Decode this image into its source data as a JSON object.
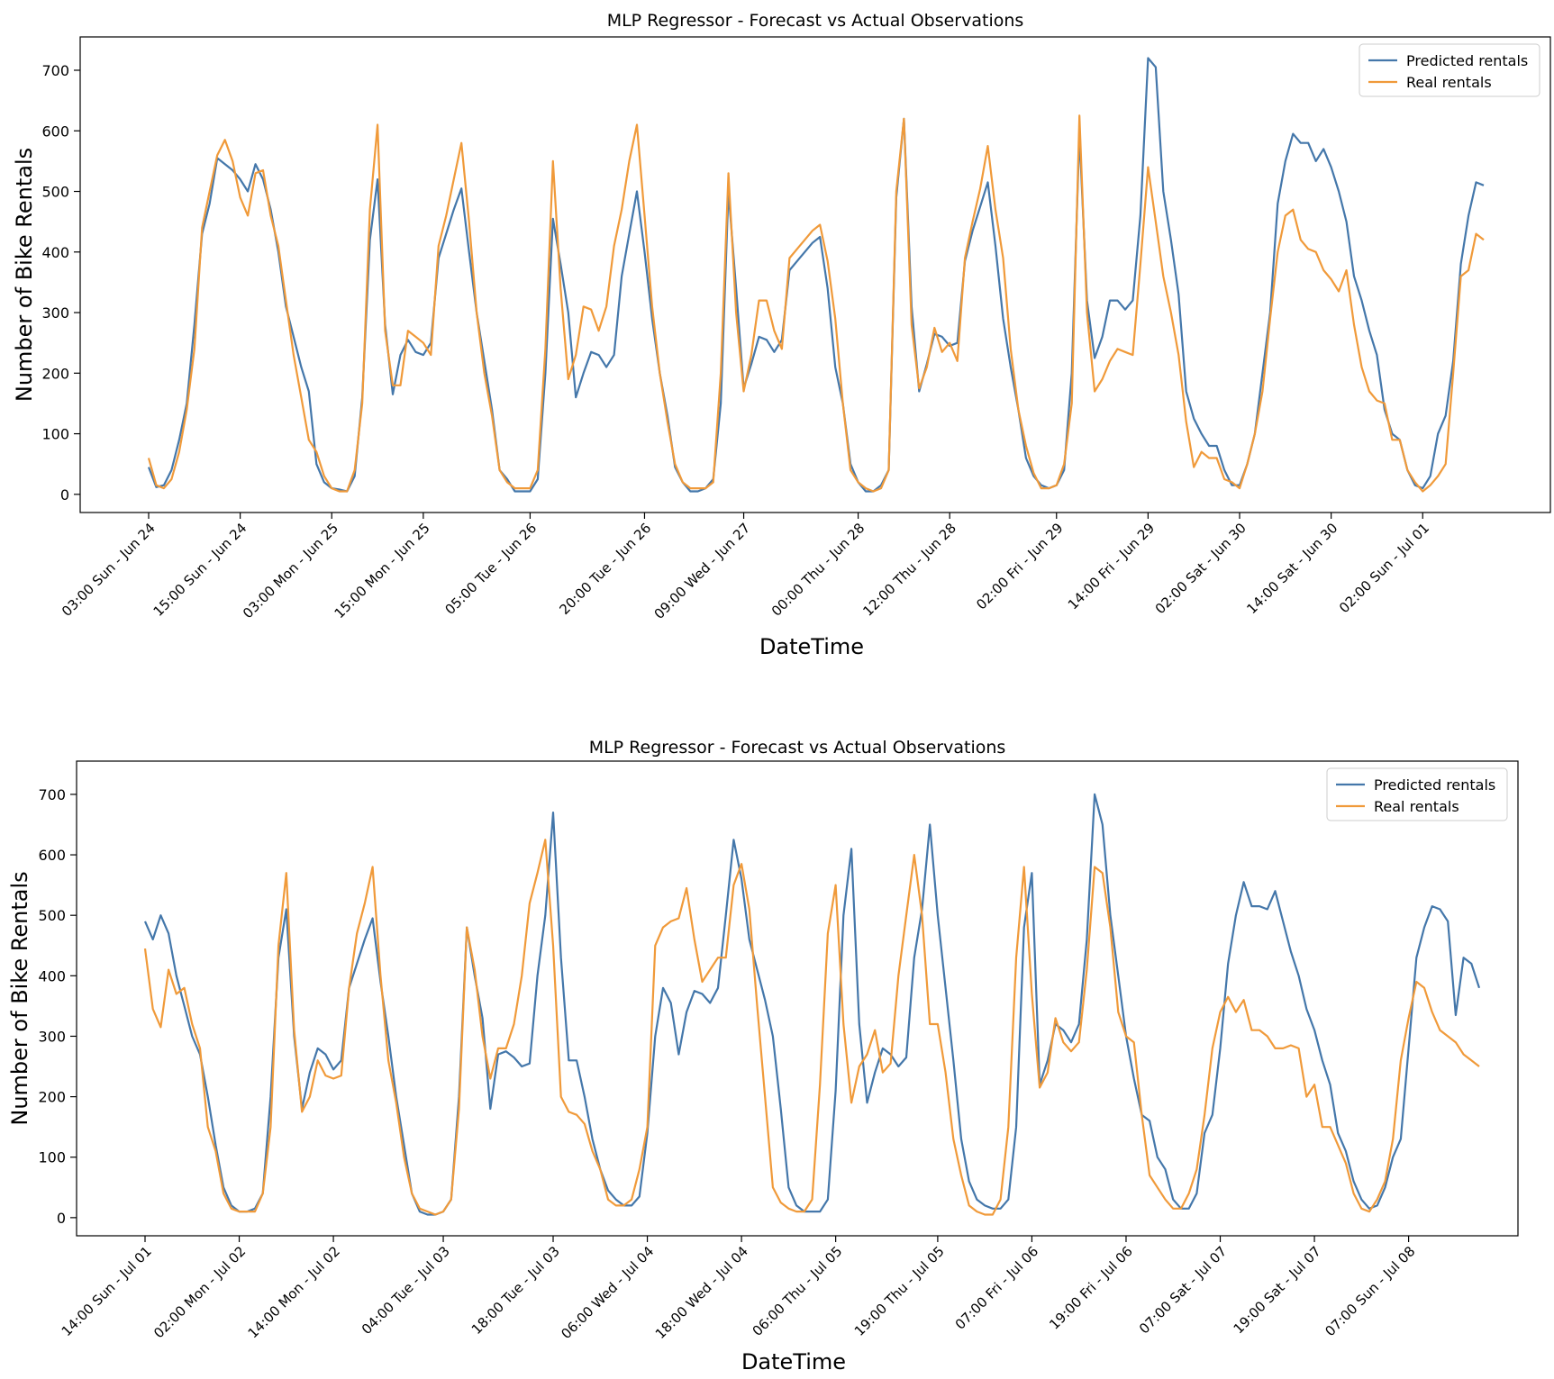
{
  "colors": {
    "predicted": "#4477aa",
    "real": "#f09a3a",
    "axis": "#000000"
  },
  "chart_data": [
    {
      "type": "line",
      "title": "MLP Regressor - Forecast vs Actual Observations",
      "xlabel": "DateTime",
      "ylabel": "Number of Bike Rentals",
      "ylim": [
        -30,
        755
      ],
      "yticks": [
        0,
        100,
        200,
        300,
        400,
        500,
        600,
        700
      ],
      "legend_position": "top-right",
      "grid": false,
      "xticks": [
        {
          "i": 0,
          "label": "03:00 Sun - Jun 24"
        },
        {
          "i": 12,
          "label": "15:00 Sun - Jun 24"
        },
        {
          "i": 24,
          "label": "03:00 Mon - Jun 25"
        },
        {
          "i": 36,
          "label": "15:00 Mon - Jun 25"
        },
        {
          "i": 50,
          "label": "05:00 Tue - Jun 26"
        },
        {
          "i": 65,
          "label": "20:00 Tue - Jun 26"
        },
        {
          "i": 78,
          "label": "09:00 Wed - Jun 27"
        },
        {
          "i": 93,
          "label": "00:00 Thu - Jun 28"
        },
        {
          "i": 105,
          "label": "12:00 Thu - Jun 28"
        },
        {
          "i": 119,
          "label": "02:00 Fri - Jun 29"
        },
        {
          "i": 131,
          "label": "14:00 Fri - Jun 29"
        },
        {
          "i": 143,
          "label": "02:00 Sat - Jun 30"
        },
        {
          "i": 155,
          "label": "14:00 Sat - Jun 30"
        },
        {
          "i": 167,
          "label": "02:00 Sun - Jul 01"
        }
      ],
      "series": [
        {
          "name": "Predicted rentals",
          "color": "predicted",
          "values": [
            45,
            12,
            15,
            40,
            90,
            150,
            280,
            430,
            480,
            555,
            545,
            535,
            520,
            500,
            545,
            520,
            470,
            400,
            310,
            260,
            210,
            170,
            50,
            20,
            10,
            8,
            5,
            30,
            160,
            420,
            520,
            280,
            165,
            230,
            255,
            235,
            230,
            250,
            390,
            430,
            470,
            505,
            400,
            300,
            220,
            140,
            40,
            25,
            5,
            5,
            5,
            25,
            200,
            455,
            380,
            300,
            160,
            200,
            235,
            230,
            210,
            230,
            360,
            430,
            500,
            400,
            290,
            200,
            130,
            45,
            20,
            5,
            5,
            10,
            25,
            150,
            500,
            340,
            175,
            215,
            260,
            255,
            235,
            255,
            370,
            385,
            400,
            415,
            425,
            340,
            210,
            150,
            50,
            20,
            5,
            5,
            15,
            40,
            490,
            620,
            310,
            170,
            215,
            265,
            260,
            245,
            250,
            385,
            435,
            475,
            515,
            410,
            290,
            210,
            140,
            60,
            30,
            15,
            10,
            15,
            40,
            200,
            595,
            320,
            225,
            260,
            320,
            320,
            305,
            320,
            460,
            720,
            705,
            500,
            420,
            330,
            170,
            125,
            100,
            80,
            80,
            40,
            15,
            15,
            50,
            100,
            200,
            300,
            480,
            550,
            595,
            580,
            580,
            550,
            570,
            540,
            500,
            450,
            360,
            320,
            270,
            230,
            140,
            100,
            90,
            40,
            15,
            10,
            30,
            100,
            130,
            220,
            380,
            460,
            515,
            510
          ]
        },
        {
          "name": "Real rentals",
          "color": "real",
          "values": [
            60,
            15,
            10,
            25,
            70,
            140,
            240,
            440,
            500,
            560,
            585,
            550,
            490,
            460,
            530,
            535,
            460,
            410,
            320,
            230,
            160,
            90,
            70,
            30,
            10,
            5,
            5,
            40,
            150,
            470,
            610,
            270,
            180,
            180,
            270,
            260,
            250,
            230,
            410,
            460,
            520,
            580,
            450,
            300,
            200,
            130,
            40,
            20,
            10,
            10,
            10,
            40,
            240,
            550,
            340,
            190,
            230,
            310,
            305,
            270,
            310,
            410,
            470,
            550,
            610,
            460,
            310,
            200,
            120,
            50,
            20,
            10,
            10,
            10,
            20,
            200,
            530,
            300,
            170,
            230,
            320,
            320,
            270,
            240,
            390,
            405,
            420,
            435,
            445,
            385,
            290,
            150,
            40,
            20,
            10,
            5,
            10,
            40,
            500,
            620,
            280,
            175,
            210,
            275,
            235,
            250,
            220,
            390,
            450,
            505,
            575,
            470,
            390,
            240,
            140,
            80,
            35,
            10,
            10,
            15,
            50,
            150,
            625,
            300,
            170,
            190,
            220,
            240,
            235,
            230,
            380,
            540,
            450,
            360,
            300,
            230,
            120,
            45,
            70,
            60,
            60,
            25,
            20,
            10,
            50,
            100,
            170,
            290,
            400,
            460,
            470,
            420,
            405,
            400,
            370,
            355,
            335,
            370,
            280,
            210,
            170,
            155,
            150,
            90,
            90,
            40,
            20,
            5,
            15,
            30,
            50,
            200,
            360,
            370,
            430,
            420
          ]
        }
      ]
    },
    {
      "type": "line",
      "title": "MLP Regressor - Forecast vs Actual Observations",
      "xlabel": "DateTime",
      "ylabel": "Number of Bike Rentals",
      "ylim": [
        -30,
        755
      ],
      "yticks": [
        0,
        100,
        200,
        300,
        400,
        500,
        600,
        700
      ],
      "legend_position": "top-right",
      "grid": false,
      "xticks": [
        {
          "i": 0,
          "label": "14:00 Sun - Jul 01"
        },
        {
          "i": 12,
          "label": "02:00 Mon - Jul 02"
        },
        {
          "i": 24,
          "label": "14:00 Mon - Jul 02"
        },
        {
          "i": 38,
          "label": "04:00 Tue - Jul 03"
        },
        {
          "i": 52,
          "label": "18:00 Tue - Jul 03"
        },
        {
          "i": 64,
          "label": "06:00 Wed - Jul 04"
        },
        {
          "i": 76,
          "label": "18:00 Wed - Jul 04"
        },
        {
          "i": 88,
          "label": "06:00 Thu - Jul 05"
        },
        {
          "i": 101,
          "label": "19:00 Thu - Jul 05"
        },
        {
          "i": 113,
          "label": "07:00 Fri - Jul 06"
        },
        {
          "i": 125,
          "label": "19:00 Fri - Jul 06"
        },
        {
          "i": 137,
          "label": "07:00 Sat - Jul 07"
        },
        {
          "i": 149,
          "label": "19:00 Sat - Jul 07"
        },
        {
          "i": 161,
          "label": "07:00 Sun - Jul 08"
        }
      ],
      "series": [
        {
          "name": "Predicted rentals",
          "color": "predicted",
          "values": [
            490,
            460,
            500,
            470,
            400,
            350,
            300,
            270,
            200,
            120,
            50,
            20,
            10,
            10,
            15,
            40,
            200,
            430,
            510,
            300,
            180,
            240,
            280,
            270,
            245,
            260,
            380,
            420,
            460,
            495,
            390,
            300,
            200,
            120,
            40,
            10,
            5,
            5,
            10,
            30,
            200,
            480,
            400,
            330,
            180,
            270,
            275,
            265,
            250,
            255,
            400,
            500,
            670,
            430,
            260,
            260,
            200,
            130,
            80,
            45,
            30,
            20,
            20,
            35,
            140,
            300,
            380,
            355,
            270,
            340,
            375,
            370,
            355,
            380,
            500,
            625,
            560,
            460,
            410,
            360,
            300,
            180,
            50,
            20,
            10,
            10,
            10,
            30,
            210,
            500,
            610,
            320,
            190,
            240,
            280,
            270,
            250,
            265,
            430,
            510,
            650,
            500,
            380,
            260,
            130,
            60,
            30,
            20,
            15,
            15,
            30,
            150,
            480,
            570,
            220,
            260,
            320,
            310,
            290,
            320,
            460,
            700,
            650,
            500,
            400,
            300,
            230,
            170,
            160,
            100,
            80,
            30,
            15,
            15,
            40,
            140,
            170,
            280,
            420,
            500,
            555,
            515,
            515,
            510,
            540,
            490,
            440,
            400,
            345,
            310,
            260,
            220,
            140,
            110,
            60,
            30,
            15,
            20,
            50,
            100,
            130,
            280,
            430,
            480,
            515,
            510,
            490,
            335,
            430,
            420,
            380
          ]
        },
        {
          "name": "Real rentals",
          "color": "real",
          "values": [
            445,
            345,
            315,
            410,
            370,
            380,
            320,
            280,
            150,
            110,
            40,
            15,
            10,
            10,
            10,
            40,
            150,
            450,
            570,
            310,
            175,
            200,
            260,
            235,
            230,
            235,
            380,
            470,
            520,
            580,
            400,
            260,
            190,
            100,
            40,
            15,
            10,
            5,
            10,
            30,
            180,
            480,
            410,
            300,
            230,
            280,
            280,
            320,
            400,
            520,
            570,
            625,
            450,
            200,
            175,
            170,
            155,
            110,
            80,
            30,
            20,
            20,
            30,
            80,
            150,
            450,
            480,
            490,
            495,
            545,
            460,
            390,
            410,
            430,
            430,
            550,
            585,
            510,
            350,
            200,
            50,
            25,
            15,
            10,
            10,
            30,
            220,
            470,
            550,
            320,
            190,
            250,
            270,
            310,
            240,
            255,
            400,
            500,
            600,
            500,
            320,
            320,
            240,
            130,
            70,
            20,
            10,
            5,
            5,
            30,
            150,
            430,
            580,
            370,
            215,
            240,
            330,
            290,
            275,
            290,
            410,
            580,
            570,
            480,
            340,
            300,
            290,
            170,
            70,
            50,
            30,
            15,
            15,
            40,
            80,
            170,
            280,
            340,
            365,
            340,
            360,
            310,
            310,
            300,
            280,
            280,
            285,
            280,
            200,
            220,
            150,
            150,
            120,
            90,
            40,
            15,
            10,
            30,
            60,
            130,
            260,
            330,
            390,
            380,
            340,
            310,
            300,
            290,
            270,
            260,
            250
          ]
        }
      ]
    }
  ]
}
